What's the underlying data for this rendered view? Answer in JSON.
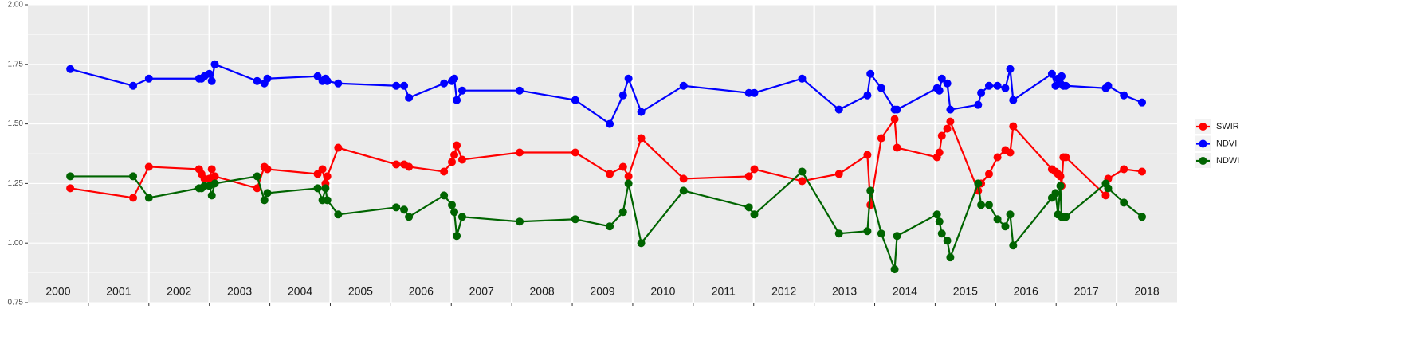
{
  "chart_data": {
    "type": "line",
    "x": [
      2000.7,
      2001.74,
      2002.0,
      2002.83,
      2002.87,
      2002.92,
      2003.0,
      2003.04,
      2003.09,
      2003.79,
      2003.91,
      2003.96,
      2004.79,
      2004.87,
      2004.92,
      2004.95,
      2005.13,
      2006.09,
      2006.22,
      2006.3,
      2006.88,
      2007.01,
      2007.05,
      2007.09,
      2007.18,
      2008.13,
      2009.05,
      2009.62,
      2009.84,
      2009.93,
      2010.14,
      2010.84,
      2011.92,
      2012.01,
      2012.8,
      2013.41,
      2013.88,
      2013.93,
      2014.11,
      2014.33,
      2014.37,
      2015.03,
      2015.07,
      2015.11,
      2015.2,
      2015.25,
      2015.71,
      2015.76,
      2015.89,
      2016.03,
      2016.16,
      2016.24,
      2016.29,
      2016.93,
      2016.99,
      2017.03,
      2017.07,
      2017.09,
      2017.12,
      2017.16,
      2017.82,
      2017.86,
      2018.12,
      2018.42
    ],
    "series": [
      {
        "name": "SWIR",
        "color": "#ff0000",
        "values": [
          1.23,
          1.19,
          1.32,
          1.31,
          1.29,
          1.27,
          1.27,
          1.31,
          1.28,
          1.23,
          1.32,
          1.31,
          1.29,
          1.31,
          1.25,
          1.28,
          1.4,
          1.33,
          1.33,
          1.32,
          1.3,
          1.34,
          1.37,
          1.41,
          1.35,
          1.38,
          1.38,
          1.29,
          1.32,
          1.28,
          1.44,
          1.27,
          1.28,
          1.31,
          1.26,
          1.29,
          1.37,
          1.16,
          1.44,
          1.52,
          1.4,
          1.36,
          1.38,
          1.45,
          1.48,
          1.51,
          1.22,
          1.25,
          1.29,
          1.36,
          1.39,
          1.38,
          1.49,
          1.31,
          1.3,
          1.29,
          1.28,
          1.24,
          1.36,
          1.36,
          1.2,
          1.27,
          1.31,
          1.3
        ]
      },
      {
        "name": "NDVI",
        "color": "#0000ff",
        "values": [
          1.73,
          1.66,
          1.69,
          1.69,
          1.69,
          1.7,
          1.71,
          1.68,
          1.75,
          1.68,
          1.67,
          1.69,
          1.7,
          1.68,
          1.69,
          1.68,
          1.67,
          1.66,
          1.66,
          1.61,
          1.67,
          1.68,
          1.69,
          1.6,
          1.64,
          1.64,
          1.6,
          1.5,
          1.62,
          1.69,
          1.55,
          1.66,
          1.63,
          1.63,
          1.69,
          1.56,
          1.62,
          1.71,
          1.65,
          1.56,
          1.56,
          1.65,
          1.64,
          1.69,
          1.67,
          1.56,
          1.58,
          1.63,
          1.66,
          1.66,
          1.65,
          1.73,
          1.6,
          1.71,
          1.66,
          1.69,
          1.67,
          1.7,
          1.66,
          1.66,
          1.65,
          1.66,
          1.62,
          1.59
        ]
      },
      {
        "name": "NDWI",
        "color": "#006400",
        "values": [
          1.28,
          1.28,
          1.19,
          1.23,
          1.23,
          1.24,
          1.24,
          1.2,
          1.25,
          1.28,
          1.18,
          1.21,
          1.23,
          1.18,
          1.23,
          1.18,
          1.12,
          1.15,
          1.14,
          1.11,
          1.2,
          1.16,
          1.13,
          1.03,
          1.11,
          1.09,
          1.1,
          1.07,
          1.13,
          1.25,
          1.0,
          1.22,
          1.15,
          1.12,
          1.3,
          1.04,
          1.05,
          1.22,
          1.04,
          0.89,
          1.03,
          1.12,
          1.09,
          1.04,
          1.01,
          0.94,
          1.25,
          1.16,
          1.16,
          1.1,
          1.07,
          1.12,
          0.99,
          1.19,
          1.21,
          1.12,
          1.24,
          1.11,
          1.11,
          1.11,
          1.25,
          1.23,
          1.17,
          1.11
        ]
      }
    ],
    "xlim": [
      2000,
      2019
    ],
    "xticks": [
      2001,
      2002,
      2003,
      2004,
      2005,
      2006,
      2007,
      2008,
      2009,
      2010,
      2011,
      2012,
      2013,
      2014,
      2015,
      2016,
      2017,
      2018
    ],
    "year_labels": [
      2000,
      2001,
      2002,
      2003,
      2004,
      2005,
      2006,
      2007,
      2008,
      2009,
      2010,
      2011,
      2012,
      2013,
      2014,
      2015,
      2016,
      2017,
      2018
    ],
    "ylim": [
      0.75,
      2.0
    ],
    "yticks": [
      {
        "value": 0.75,
        "label": "0.75"
      },
      {
        "value": 1,
        "label": "1.00"
      },
      {
        "value": 1.25,
        "label": "1.25"
      },
      {
        "value": 1.5,
        "label": "1.50"
      },
      {
        "value": 1.75,
        "label": "1.75"
      },
      {
        "value": 2,
        "label": "2.00"
      }
    ],
    "grid": true,
    "legend": "right"
  }
}
